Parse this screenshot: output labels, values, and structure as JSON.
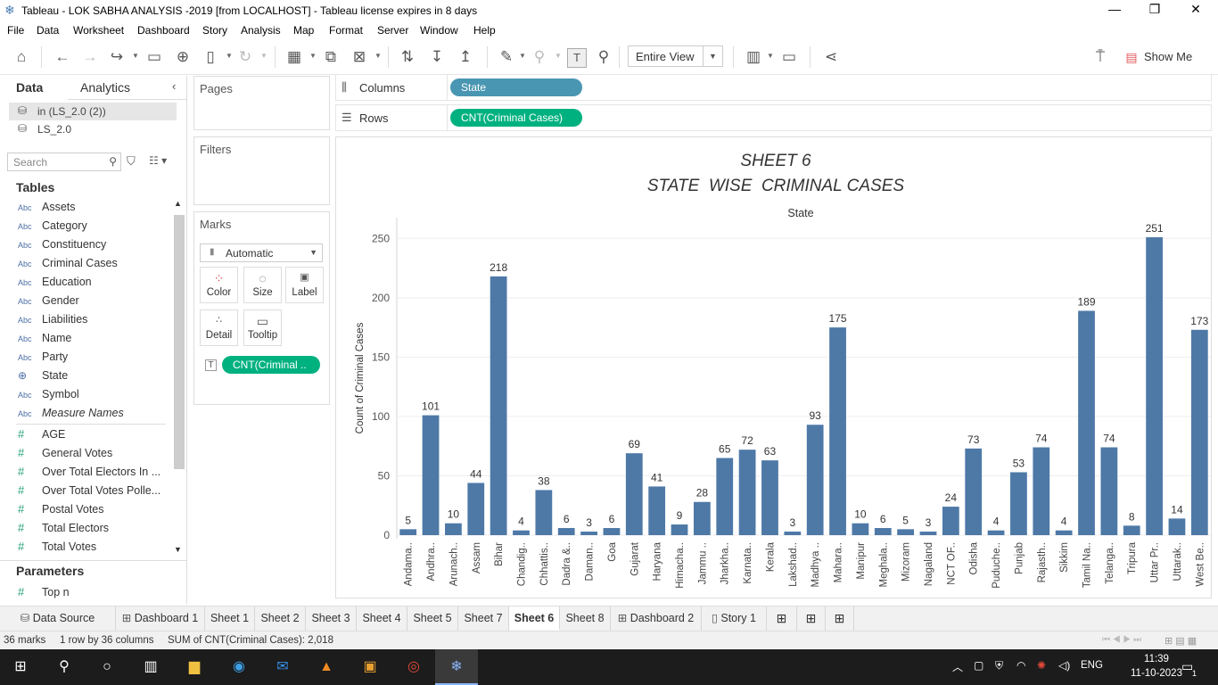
{
  "window": {
    "title": "Tableau - LOK SABHA ANALYSIS -2019 [from LOCALHOST] - Tableau license expires in 8 days",
    "minimize": "—",
    "restore": "❐",
    "close": "✕"
  },
  "menu": [
    "File",
    "Data",
    "Worksheet",
    "Dashboard",
    "Story",
    "Analysis",
    "Map",
    "Format",
    "Server",
    "Window",
    "Help"
  ],
  "toolbar": {
    "view_select": "Entire View",
    "show_me": "Show Me"
  },
  "data_pane": {
    "tab_data": "Data",
    "tab_analytics": "Analytics",
    "datasources": [
      "in (LS_2.0 (2))",
      "LS_2.0"
    ],
    "search_placeholder": "Search",
    "tables_header": "Tables",
    "dimensions": [
      {
        "icon": "Abc",
        "name": "Assets"
      },
      {
        "icon": "Abc",
        "name": "Category"
      },
      {
        "icon": "Abc",
        "name": "Constituency"
      },
      {
        "icon": "Abc",
        "name": "Criminal Cases"
      },
      {
        "icon": "Abc",
        "name": "Education"
      },
      {
        "icon": "Abc",
        "name": "Gender"
      },
      {
        "icon": "Abc",
        "name": "Liabilities"
      },
      {
        "icon": "Abc",
        "name": "Name"
      },
      {
        "icon": "Abc",
        "name": "Party"
      },
      {
        "icon": "globe",
        "name": "State"
      },
      {
        "icon": "Abc",
        "name": "Symbol"
      },
      {
        "icon": "Abc",
        "name": "Measure Names"
      }
    ],
    "measures": [
      "AGE",
      "General Votes",
      "Over Total Electors  In ...",
      "Over Total Votes Polle...",
      "Postal Votes",
      "Total Electors",
      "Total Votes"
    ],
    "parameters_header": "Parameters",
    "parameters": [
      "Top n"
    ]
  },
  "cards": {
    "pages": "Pages",
    "filters": "Filters",
    "marks": "Marks",
    "mark_type": "Automatic",
    "buttons": [
      "Color",
      "Size",
      "Label",
      "Detail",
      "Tooltip"
    ],
    "label_pill": "CNT(Criminal .."
  },
  "shelves": {
    "columns_label": "Columns",
    "columns_pill": "State",
    "rows_label": "Rows",
    "rows_pill": "CNT(Criminal Cases)"
  },
  "chart_data": {
    "type": "bar",
    "title": "SHEET 6",
    "subtitle": "STATE  WISE  CRIMINAL CASES",
    "xlabel": "State",
    "ylabel": "Count of Criminal Cases",
    "ylim": [
      0,
      260
    ],
    "yticks": [
      0,
      50,
      100,
      150,
      200,
      250
    ],
    "bar_color": "#4e79a7",
    "categories": [
      "Andama..",
      "Andhra..",
      "Arunach..",
      "Assam",
      "Bihar",
      "Chandig..",
      "Chhattis..",
      "Dadra &..",
      "Daman..",
      "Goa",
      "Gujarat",
      "Haryana",
      "Himacha..",
      "Jammu ..",
      "Jharkha..",
      "Karnata..",
      "Kerala",
      "Lakshad..",
      "Madhya ..",
      "Mahara..",
      "Manipur",
      "Meghala..",
      "Mizoram",
      "Nagaland",
      "NCT OF..",
      "Odisha",
      "Puduche..",
      "Punjab",
      "Rajasth..",
      "Sikkim",
      "Tamil Na..",
      "Telanga..",
      "Tripura",
      "Uttar Pr..",
      "Uttarak..",
      "West Be.."
    ],
    "values": [
      5,
      101,
      10,
      44,
      218,
      4,
      38,
      6,
      3,
      6,
      69,
      41,
      9,
      28,
      65,
      72,
      63,
      3,
      93,
      175,
      10,
      6,
      5,
      3,
      24,
      73,
      4,
      53,
      74,
      4,
      189,
      74,
      8,
      251,
      14,
      173
    ]
  },
  "sheet_tabs": [
    "Data Source",
    "Dashboard 1",
    "Sheet 1",
    "Sheet 2",
    "Sheet 3",
    "Sheet 4",
    "Sheet 5",
    "Sheet 7",
    "Sheet 6",
    "Sheet 8",
    "Dashboard 2",
    "Story 1"
  ],
  "active_tab": "Sheet 6",
  "status": {
    "marks": "36 marks",
    "layout": "1 row by 36 columns",
    "sum": "SUM of CNT(Criminal Cases): 2,018"
  },
  "taskbar": {
    "lang": "ENG",
    "time": "11:39",
    "date": "11-10-2023",
    "notif": "1"
  }
}
